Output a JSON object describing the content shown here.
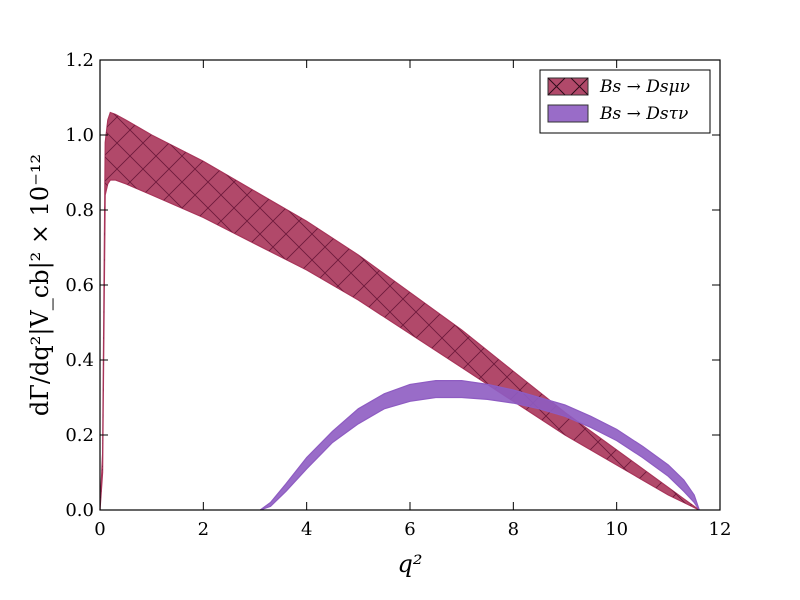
{
  "chart_data": {
    "type": "area",
    "xlabel": "q²",
    "ylabel": "dΓ/dq²|V_cb|² × 10⁻¹²",
    "xlim": [
      0,
      12
    ],
    "ylim": [
      0,
      1.2
    ],
    "x_ticks": [
      "0",
      "2",
      "4",
      "6",
      "8",
      "10",
      "12"
    ],
    "y_ticks": [
      "0.0",
      "0.2",
      "0.4",
      "0.6",
      "0.8",
      "1.0",
      "1.2"
    ],
    "legend_position": "top-right",
    "grid": false,
    "series": [
      {
        "name": "Bs → Dsμν",
        "color": "#a8355a",
        "hatch": "crosshatch",
        "x": [
          0.0,
          0.05,
          0.1,
          0.15,
          0.2,
          0.3,
          0.5,
          1.0,
          2.0,
          3.0,
          4.0,
          5.0,
          6.0,
          7.0,
          8.0,
          9.0,
          10.0,
          11.0,
          11.3,
          11.6
        ],
        "upper": [
          0.0,
          0.15,
          0.98,
          1.04,
          1.06,
          1.055,
          1.04,
          1.0,
          0.93,
          0.85,
          0.77,
          0.68,
          0.58,
          0.48,
          0.37,
          0.26,
          0.16,
          0.06,
          0.03,
          0.0
        ],
        "lower": [
          0.0,
          0.1,
          0.84,
          0.87,
          0.88,
          0.88,
          0.87,
          0.84,
          0.78,
          0.71,
          0.64,
          0.56,
          0.47,
          0.38,
          0.29,
          0.2,
          0.12,
          0.04,
          0.02,
          0.0
        ]
      },
      {
        "name": "Bs → Dsτν",
        "color": "#8e5cc2",
        "hatch": "none",
        "x": [
          3.1,
          3.3,
          3.6,
          4.0,
          4.5,
          5.0,
          5.5,
          6.0,
          6.5,
          7.0,
          7.5,
          8.0,
          8.5,
          9.0,
          9.5,
          10.0,
          10.5,
          11.0,
          11.3,
          11.5,
          11.6
        ],
        "upper": [
          0.0,
          0.02,
          0.07,
          0.14,
          0.21,
          0.27,
          0.31,
          0.335,
          0.345,
          0.345,
          0.335,
          0.32,
          0.3,
          0.28,
          0.25,
          0.215,
          0.17,
          0.12,
          0.08,
          0.04,
          0.0
        ],
        "lower": [
          0.0,
          0.01,
          0.05,
          0.11,
          0.18,
          0.23,
          0.27,
          0.29,
          0.3,
          0.3,
          0.295,
          0.285,
          0.27,
          0.25,
          0.22,
          0.185,
          0.14,
          0.09,
          0.05,
          0.02,
          0.0
        ]
      }
    ]
  }
}
